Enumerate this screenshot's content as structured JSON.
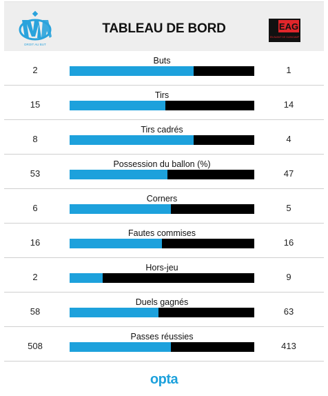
{
  "header": {
    "title": "TABLEAU DE BORD",
    "home_logo_icon": "om-crest-icon",
    "home_logo_caption": "DROIT AU BUT",
    "away_logo_icon": "eag-crest-icon",
    "away_logo_text": "EAG",
    "away_logo_subtext": "EN AVANT DE GUINGAMP"
  },
  "colors": {
    "home": "#1da1dc",
    "away": "#000000",
    "away_badge": "#e0262b"
  },
  "chart_data": {
    "type": "bar",
    "title": "TABLEAU DE BORD",
    "categories": [
      "Buts",
      "Tirs",
      "Tirs cadrés",
      "Possession du ballon (%)",
      "Corners",
      "Fautes commises",
      "Hors-jeu",
      "Duels gagnés",
      "Passes réussies"
    ],
    "series": [
      {
        "values": [
          2,
          15,
          8,
          53,
          6,
          16,
          2,
          58,
          508
        ]
      },
      {
        "values": [
          1,
          14,
          4,
          47,
          5,
          16,
          9,
          63,
          413
        ]
      }
    ],
    "home_share": [
      0.67,
      0.52,
      0.67,
      0.53,
      0.55,
      0.5,
      0.18,
      0.48,
      0.55
    ]
  },
  "footer": {
    "brand": "opta"
  }
}
